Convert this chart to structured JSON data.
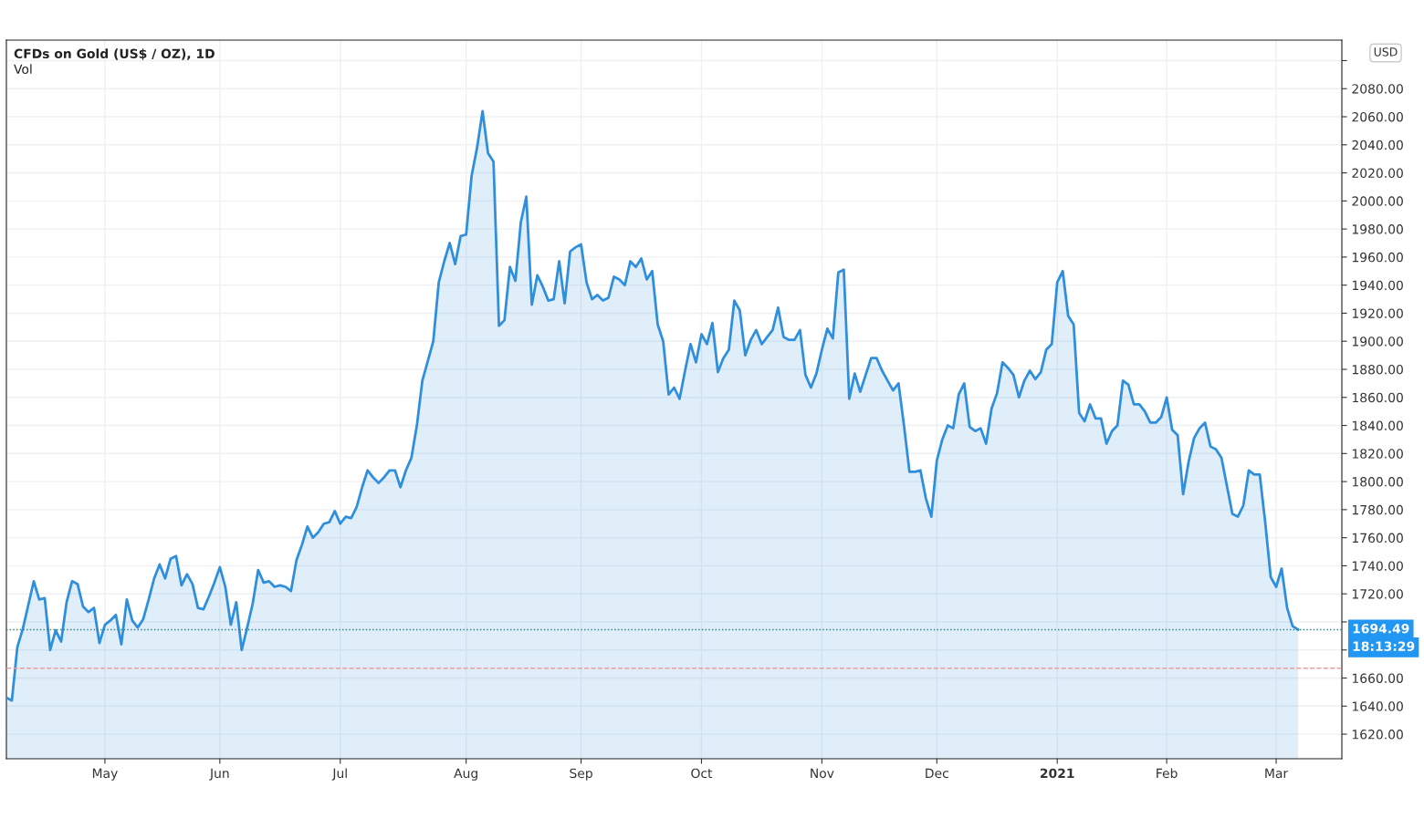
{
  "chart_data": {
    "type": "area",
    "title": "CFDs on Gold (US$ / OZ), 1D",
    "annotations": [
      "Vol",
      "USD",
      "18:13:29"
    ],
    "categories": [
      null,
      null,
      null,
      null,
      null,
      null,
      null,
      null,
      null,
      null,
      null,
      null,
      null,
      null,
      null,
      null,
      null,
      null,
      "May",
      null,
      null,
      null,
      null,
      null,
      null,
      null,
      null,
      null,
      null,
      null,
      null,
      null,
      null,
      null,
      null,
      null,
      null,
      null,
      null,
      "Jun",
      null,
      null,
      null,
      null,
      null,
      null,
      null,
      null,
      null,
      null,
      null,
      null,
      null,
      null,
      null,
      null,
      null,
      null,
      null,
      null,
      null,
      "Jul",
      null,
      null,
      null,
      null,
      null,
      null,
      null,
      null,
      null,
      null,
      null,
      null,
      null,
      null,
      null,
      null,
      null,
      null,
      null,
      null,
      null,
      null,
      "Aug",
      null,
      null,
      null,
      null,
      null,
      null,
      null,
      null,
      null,
      null,
      null,
      null,
      null,
      null,
      null,
      null,
      null,
      null,
      null,
      null,
      "Sep",
      null,
      null,
      null,
      null,
      null,
      null,
      null,
      null,
      null,
      null,
      null,
      null,
      null,
      null,
      null,
      null,
      null,
      null,
      null,
      null,
      null,
      "Oct",
      null,
      null,
      null,
      null,
      null,
      null,
      null,
      null,
      null,
      null,
      null,
      null,
      null,
      null,
      null,
      null,
      null,
      null,
      null,
      null,
      null,
      "Nov",
      null,
      null,
      null,
      null,
      null,
      null,
      null,
      null,
      null,
      null,
      null,
      null,
      null,
      null,
      null,
      null,
      null,
      null,
      null,
      null,
      "Dec",
      null,
      null,
      null,
      null,
      null,
      null,
      null,
      null,
      null,
      null,
      null,
      null,
      null,
      null,
      null,
      null,
      null,
      null,
      null,
      null,
      null,
      "2021",
      null,
      null,
      null,
      null,
      null,
      null,
      null,
      null,
      null,
      null,
      null,
      null,
      null,
      null,
      null,
      null,
      null,
      null,
      null,
      "Feb",
      null,
      null,
      null,
      null,
      null,
      null,
      null,
      null,
      null,
      null,
      null,
      null,
      null,
      null,
      null,
      null,
      null,
      null,
      null,
      "Mar",
      null,
      null,
      null,
      null,
      null,
      null,
      null,
      null,
      null,
      null,
      null,
      null
    ],
    "series": [
      {
        "color": "#2f8fdd",
        "values": [
          1646,
          1644,
          1682,
          1695,
          1712,
          1729,
          1716,
          1717,
          1680,
          1694,
          1686,
          1714,
          1729,
          1727,
          1711,
          1707,
          1710,
          1685,
          1698,
          1701,
          1705,
          1684,
          1716,
          1701,
          1696,
          1702,
          1716,
          1731,
          1741,
          1731,
          1745,
          1747,
          1726,
          1734,
          1727,
          1710,
          1709,
          1718,
          1728,
          1739,
          1725,
          1698,
          1714,
          1680,
          1696,
          1713,
          1737,
          1728,
          1729,
          1725,
          1726,
          1725,
          1722,
          1744,
          1755,
          1768,
          1760,
          1764,
          1770,
          1771,
          1779,
          1770,
          1775,
          1774,
          1782,
          1796,
          1808,
          1803,
          1799,
          1803,
          1808,
          1808,
          1796,
          1808,
          1817,
          1840,
          1872,
          1886,
          1900,
          1942,
          1957,
          1970,
          1955,
          1975,
          1976,
          2018,
          2038,
          2064,
          2034,
          2028,
          1911,
          1915,
          1953,
          1943,
          1985,
          2003,
          1926,
          1947,
          1939,
          1929,
          1930,
          1957,
          1927,
          1964,
          1967,
          1969,
          1942,
          1930,
          1933,
          1929,
          1931,
          1946,
          1944,
          1940,
          1957,
          1953,
          1959,
          1944,
          1950,
          1912,
          1900,
          1862,
          1867,
          1859,
          1879,
          1898,
          1885,
          1905,
          1898,
          1913,
          1878,
          1888,
          1894,
          1929,
          1922,
          1890,
          1901,
          1908,
          1898,
          1903,
          1908,
          1924,
          1903,
          1901,
          1901,
          1908,
          1876,
          1867,
          1877,
          1894,
          1909,
          1902,
          1949,
          1951,
          1859,
          1877,
          1864,
          1876,
          1888,
          1888,
          1879,
          1872,
          1865,
          1870,
          1840,
          1807,
          1807,
          1808,
          1788,
          1775,
          1815,
          1830,
          1840,
          1838,
          1862,
          1870,
          1839,
          1836,
          1838,
          1827,
          1852,
          1863,
          1885,
          1881,
          1876,
          1860,
          1872,
          1879,
          1873,
          1878,
          1894,
          1898,
          1942,
          1950,
          1918,
          1912,
          1849,
          1843,
          1855,
          1845,
          1845,
          1827,
          1836,
          1840,
          1872,
          1869,
          1855,
          1855,
          1850,
          1842,
          1842,
          1846,
          1860,
          1837,
          1833,
          1791,
          1814,
          1831,
          1838,
          1842,
          1825,
          1823,
          1817,
          1797,
          1777,
          1775,
          1783,
          1808,
          1805,
          1805,
          1771,
          1732,
          1725,
          1738,
          1710,
          1697,
          1694.49,
          null,
          null,
          null,
          null,
          null,
          null,
          null,
          null
        ]
      }
    ],
    "ylim": [
      1602.5,
      2114.6
    ],
    "yticks": [
      {
        "value": 1620,
        "label": "1620.00"
      },
      {
        "value": 1640,
        "label": "1640.00"
      },
      {
        "value": 1660,
        "label": "1660.00"
      },
      {
        "value": 1680,
        "label": null
      },
      {
        "value": 1700,
        "label": null
      },
      {
        "value": 1720,
        "label": "1720.00"
      },
      {
        "value": 1740,
        "label": "1740.00"
      },
      {
        "value": 1760,
        "label": "1760.00"
      },
      {
        "value": 1780,
        "label": "1780.00"
      },
      {
        "value": 1800,
        "label": "1800.00"
      },
      {
        "value": 1820,
        "label": "1820.00"
      },
      {
        "value": 1840,
        "label": "1840.00"
      },
      {
        "value": 1860,
        "label": "1860.00"
      },
      {
        "value": 1880,
        "label": "1880.00"
      },
      {
        "value": 1900,
        "label": "1900.00"
      },
      {
        "value": 1920,
        "label": "1920.00"
      },
      {
        "value": 1940,
        "label": "1940.00"
      },
      {
        "value": 1960,
        "label": "1960.00"
      },
      {
        "value": 1980,
        "label": "1980.00"
      },
      {
        "value": 2000,
        "label": "2000.00"
      },
      {
        "value": 2020,
        "label": "2020.00"
      },
      {
        "value": 2040,
        "label": "2040.00"
      },
      {
        "value": 2060,
        "label": "2060.00"
      },
      {
        "value": 2080,
        "label": "2080.00"
      },
      {
        "value": 2100,
        "label": null
      }
    ],
    "grid": true,
    "ref_lines": [
      {
        "axis": "y",
        "value": 1694.49,
        "label": "1694.49",
        "line_style": "dotted",
        "color": "#2a7f8f"
      },
      {
        "axis": "y",
        "value": 1667,
        "line_style": "dashed",
        "color": "#e8a0a0"
      }
    ]
  }
}
